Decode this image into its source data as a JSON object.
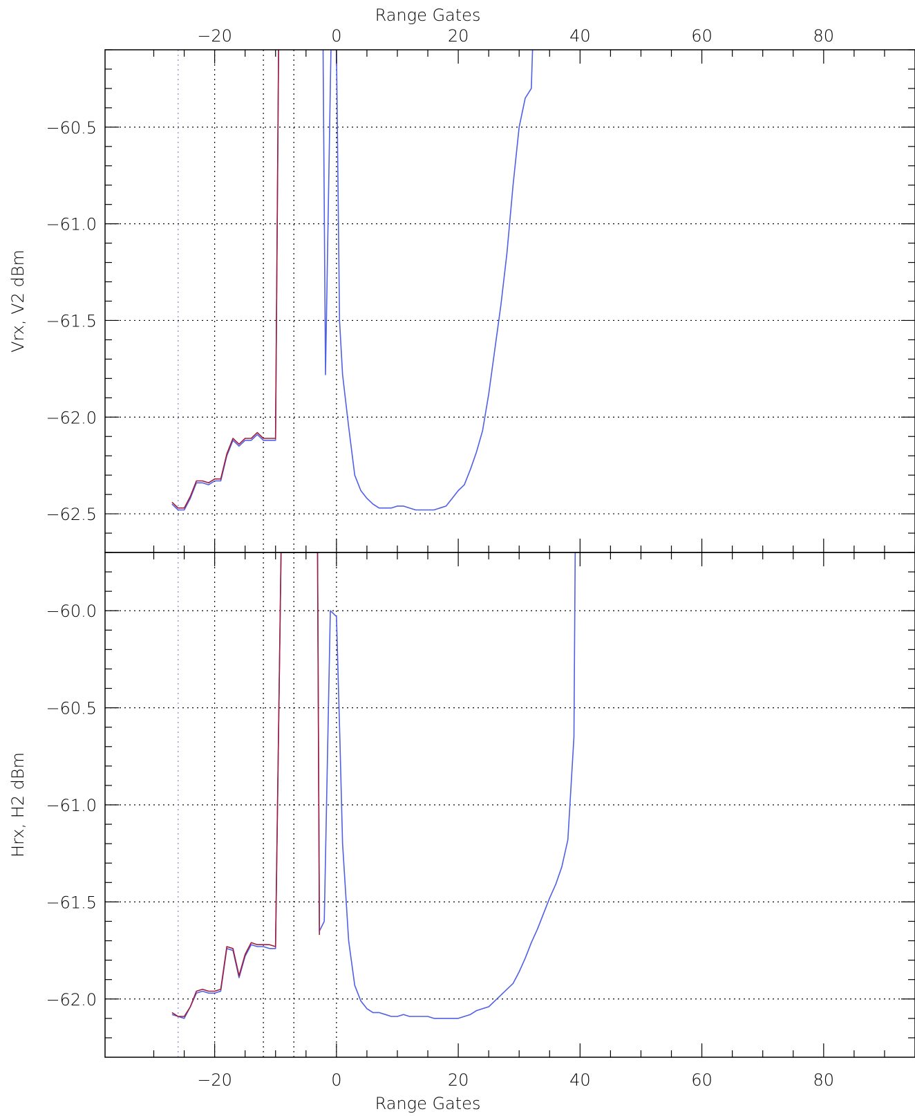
{
  "chart_data": [
    {
      "type": "line",
      "panel": "top",
      "ylabel": "Vrx, V2 dBm",
      "xlabel_top": "Range Gates",
      "xlim": [
        -38,
        95
      ],
      "ylim": [
        -62.7,
        -60.1
      ],
      "x_ticks": [
        -20,
        0,
        20,
        40,
        60,
        80
      ],
      "x_tick_labels": [
        "−20",
        "0",
        "20",
        "40",
        "60",
        "80"
      ],
      "y_ticks": [
        -62.5,
        -62.0,
        -61.5,
        -61.0,
        -60.5
      ],
      "y_tick_labels": [
        "−62.5",
        "−62.0",
        "−61.5",
        "−61.0",
        "−60.5"
      ],
      "grid": "dotted horizontal at y ticks",
      "vlines": [
        {
          "x": -26,
          "color": "#8888cc"
        },
        {
          "x": -20,
          "color": "#000000"
        },
        {
          "x": -12,
          "color": "#000000"
        },
        {
          "x": -7,
          "color": "#000000"
        },
        {
          "x": 0,
          "color": "#000000"
        }
      ],
      "series": [
        {
          "color": "#4f5fe6",
          "x": [
            -27,
            -26,
            -25,
            -24,
            -23,
            -22,
            -21,
            -20,
            -19,
            -18,
            -17,
            -16,
            -15,
            -14,
            -13,
            -12,
            -11,
            -10,
            -9.5
          ],
          "y": [
            -62.45,
            -62.48,
            -62.48,
            -62.42,
            -62.34,
            -62.34,
            -62.35,
            -62.33,
            -62.33,
            -62.2,
            -62.12,
            -62.15,
            -62.12,
            -62.12,
            -62.09,
            -62.12,
            -62.12,
            -62.12,
            -60.1
          ]
        },
        {
          "color": "#a01c3c",
          "x": [
            -27,
            -26,
            -25,
            -24,
            -23,
            -22,
            -21,
            -20,
            -19,
            -18,
            -17,
            -16,
            -15,
            -14,
            -13,
            -12,
            -11,
            -10,
            -9.5
          ],
          "y": [
            -62.44,
            -62.47,
            -62.47,
            -62.41,
            -62.33,
            -62.33,
            -62.34,
            -62.32,
            -62.32,
            -62.19,
            -62.11,
            -62.14,
            -62.11,
            -62.11,
            -62.08,
            -62.11,
            -62.11,
            -62.11,
            -60.1
          ]
        },
        {
          "color": "#4f5fe6",
          "x": [
            -2.2,
            -1.8,
            -0.9,
            -0.5,
            0,
            0.5,
            1,
            2,
            3,
            4,
            5,
            6,
            7,
            8,
            9,
            10,
            11,
            12,
            13,
            14,
            15,
            16,
            17,
            18,
            19,
            20,
            21,
            22,
            23,
            24,
            25,
            26,
            27,
            28,
            29,
            30,
            31,
            32,
            32.2
          ],
          "y": [
            -60.1,
            -61.78,
            -60.1,
            -60.1,
            -60.1,
            -61.5,
            -61.78,
            -62.05,
            -62.3,
            -62.38,
            -62.42,
            -62.45,
            -62.47,
            -62.47,
            -62.47,
            -62.46,
            -62.46,
            -62.47,
            -62.48,
            -62.48,
            -62.48,
            -62.48,
            -62.47,
            -62.46,
            -62.42,
            -62.38,
            -62.35,
            -62.27,
            -62.18,
            -62.07,
            -61.88,
            -61.65,
            -61.42,
            -61.15,
            -60.8,
            -60.5,
            -60.35,
            -60.3,
            -60.1
          ]
        }
      ]
    },
    {
      "type": "line",
      "panel": "bottom",
      "ylabel": "Hrx, H2 dBm",
      "xlabel": "Range Gates",
      "xlim": [
        -38,
        95
      ],
      "ylim": [
        -62.3,
        -59.7
      ],
      "x_ticks": [
        -20,
        0,
        20,
        40,
        60,
        80
      ],
      "x_tick_labels": [
        "−20",
        "0",
        "20",
        "40",
        "60",
        "80"
      ],
      "y_ticks": [
        -62.0,
        -61.5,
        -61.0,
        -60.5,
        -60.0
      ],
      "y_tick_labels": [
        "−62.0",
        "−61.5",
        "−61.0",
        "−60.5",
        "−60.0"
      ],
      "grid": "dotted horizontal at y ticks",
      "vlines": [
        {
          "x": -26,
          "color": "#8888cc"
        },
        {
          "x": -20,
          "color": "#000000"
        },
        {
          "x": -12,
          "color": "#000000"
        },
        {
          "x": -7,
          "color": "#000000"
        },
        {
          "x": 0,
          "color": "#000000"
        }
      ],
      "series": [
        {
          "color": "#4f5fe6",
          "x": [
            -27,
            -26,
            -25,
            -24,
            -23,
            -22,
            -21,
            -20,
            -19,
            -18,
            -17,
            -16,
            -15,
            -14,
            -13,
            -12,
            -11,
            -10,
            -9.1,
            -3.1,
            -2.8,
            -2
          ],
          "y": [
            -62.08,
            -62.09,
            -62.1,
            -62.04,
            -61.97,
            -61.96,
            -61.97,
            -61.97,
            -61.96,
            -61.74,
            -61.75,
            -61.89,
            -61.78,
            -61.72,
            -61.73,
            -61.73,
            -61.74,
            -61.74,
            -59.7,
            -59.7,
            -61.65,
            -61.6
          ]
        },
        {
          "color": "#a01c3c",
          "x": [
            -27,
            -26,
            -25,
            -24,
            -23,
            -22,
            -21,
            -20,
            -19,
            -18,
            -17,
            -16,
            -15,
            -14,
            -13,
            -12,
            -11,
            -10,
            -9.1,
            -3.1,
            -2.8
          ],
          "y": [
            -62.07,
            -62.09,
            -62.09,
            -62.04,
            -61.96,
            -61.95,
            -61.96,
            -61.96,
            -61.95,
            -61.73,
            -61.74,
            -61.88,
            -61.77,
            -61.71,
            -61.72,
            -61.72,
            -61.72,
            -61.73,
            -59.7,
            -59.7,
            -61.67
          ]
        },
        {
          "color": "#4f5fe6",
          "x": [
            -2,
            -1,
            0,
            0.6,
            1,
            2,
            3,
            4,
            5,
            6,
            7,
            8,
            9,
            10,
            11,
            12,
            13,
            14,
            15,
            16,
            17,
            18,
            19,
            20,
            21,
            22,
            23,
            24,
            25,
            26,
            27,
            28,
            29,
            30,
            31,
            32,
            33,
            34,
            35,
            36,
            37,
            38,
            39,
            39.2
          ],
          "y": [
            -61.6,
            -60.0,
            -60.03,
            -60.7,
            -61.2,
            -61.7,
            -61.93,
            -62.01,
            -62.05,
            -62.07,
            -62.07,
            -62.08,
            -62.09,
            -62.09,
            -62.08,
            -62.09,
            -62.09,
            -62.09,
            -62.09,
            -62.1,
            -62.1,
            -62.1,
            -62.1,
            -62.1,
            -62.09,
            -62.08,
            -62.06,
            -62.05,
            -62.04,
            -62.01,
            -61.98,
            -61.95,
            -61.92,
            -61.86,
            -61.79,
            -61.71,
            -61.64,
            -61.56,
            -61.48,
            -61.41,
            -61.32,
            -61.18,
            -60.65,
            -59.7
          ]
        }
      ]
    }
  ]
}
